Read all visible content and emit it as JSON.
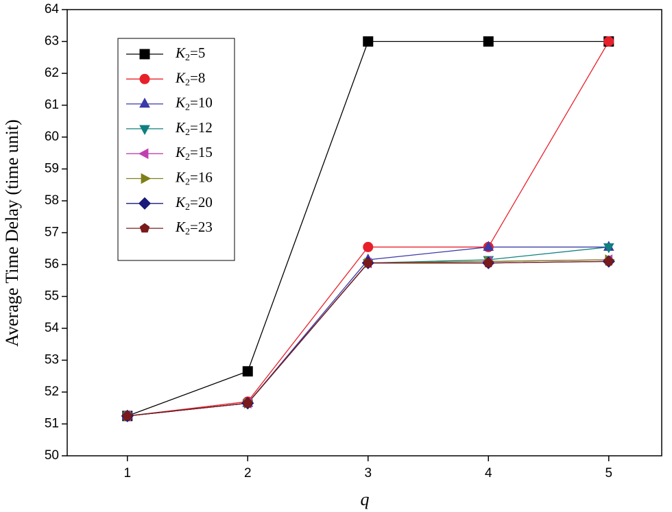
{
  "chart_data": {
    "type": "line",
    "x_label": "q",
    "y_label": "Average Time Delay (time unit)",
    "x": [
      1,
      2,
      3,
      4,
      5
    ],
    "xlim": [
      0.5,
      5.44
    ],
    "xticks": [
      1,
      2,
      3,
      4,
      5
    ],
    "ylim": [
      50,
      64
    ],
    "yticks": [
      50,
      51,
      52,
      53,
      54,
      55,
      56,
      57,
      58,
      59,
      60,
      61,
      62,
      63,
      64
    ],
    "legend": "upper-left",
    "series": [
      {
        "name": "K2=5",
        "color": "#000000",
        "marker": "square",
        "values": [
          51.25,
          52.65,
          63,
          63,
          63
        ]
      },
      {
        "name": "K2=8",
        "color": "#e8202a",
        "marker": "circle",
        "values": [
          51.25,
          51.7,
          56.55,
          56.55,
          63
        ]
      },
      {
        "name": "K2=10",
        "color": "#3a3aa8",
        "marker": "triangle-up",
        "values": [
          51.25,
          51.65,
          56.15,
          56.55,
          56.55
        ]
      },
      {
        "name": "K2=12",
        "color": "#0f7f7f",
        "marker": "triangle-down",
        "values": [
          51.25,
          51.65,
          56.05,
          56.15,
          56.55
        ]
      },
      {
        "name": "K2=15",
        "color": "#c040b0",
        "marker": "triangle-left",
        "values": [
          51.25,
          51.65,
          56.05,
          56.1,
          56.15
        ]
      },
      {
        "name": "K2=16",
        "color": "#7f7f1a",
        "marker": "triangle-right",
        "values": [
          51.25,
          51.65,
          56.05,
          56.1,
          56.15
        ]
      },
      {
        "name": "K2=20",
        "color": "#1a1a7a",
        "marker": "diamond",
        "values": [
          51.25,
          51.65,
          56.05,
          56.05,
          56.1
        ]
      },
      {
        "name": "K2=23",
        "color": "#7a1a1a",
        "marker": "pentagon",
        "values": [
          51.25,
          51.65,
          56.05,
          56.05,
          56.1
        ]
      }
    ]
  }
}
